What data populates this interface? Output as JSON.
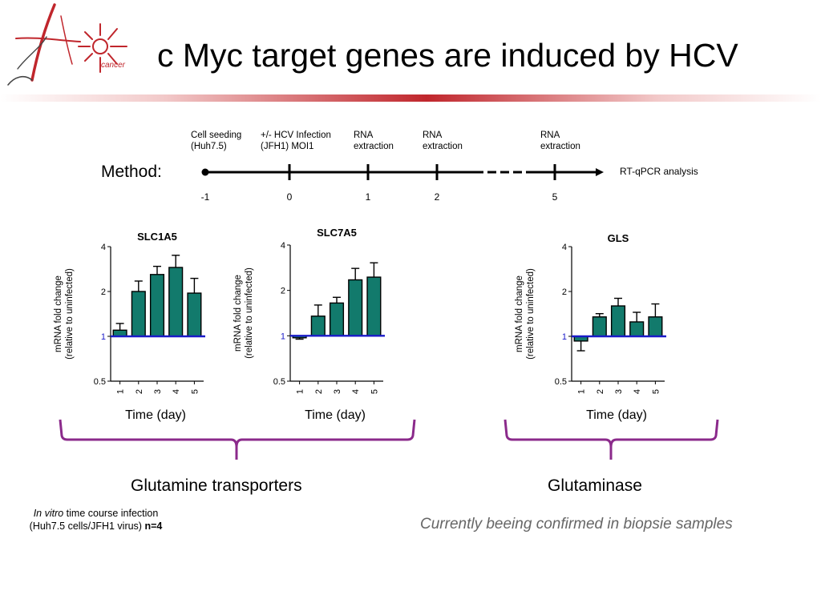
{
  "title": "c Myc target genes are induced by HCV",
  "logo": {
    "text": "cancer",
    "accent": "#c0262c"
  },
  "colors": {
    "bar": "#127a6c",
    "baseline": "#1a1ac8",
    "brace": "#8b2a8b",
    "accent": "#c0262c"
  },
  "method": {
    "label": "Method:",
    "end_label": "RT-qPCR analysis",
    "steps": [
      {
        "tick": "-1",
        "lines": [
          "Cell seeding",
          "(Huh7.5)"
        ]
      },
      {
        "tick": "0",
        "lines": [
          "+/- HCV Infection",
          "(JFH1) MOI1"
        ]
      },
      {
        "tick": "1",
        "lines": [
          "RNA",
          "extraction"
        ]
      },
      {
        "tick": "2",
        "lines": [
          "RNA",
          "extraction"
        ]
      },
      {
        "tick": "5",
        "lines": [
          "RNA",
          "extraction"
        ]
      }
    ]
  },
  "groups": {
    "transporters": "Glutamine transporters",
    "glutaminase": "Glutaminase"
  },
  "footnote": {
    "italic": "In vitro",
    "line1_rest": " time course infection",
    "line2": "(Huh7.5 cells/JFH1 virus) ",
    "n": "n=4"
  },
  "confirm_note": "Currently beeing confirmed in biopsie samples",
  "chart_data": [
    {
      "type": "bar",
      "title": "SLC1A5",
      "xlabel": "Time (day)",
      "ylabel": [
        "mRNA fold change",
        "(relative to uninfected)"
      ],
      "categories": [
        "1",
        "2",
        "3",
        "4",
        "5"
      ],
      "values": [
        1.1,
        2.0,
        2.6,
        2.9,
        1.95
      ],
      "errors": [
        0.12,
        0.35,
        0.35,
        0.6,
        0.5
      ],
      "yscale": "log2",
      "ylim": [
        0.5,
        4
      ],
      "yticks": [
        "4",
        "2",
        "1",
        "0.5"
      ],
      "baseline": 1
    },
    {
      "type": "bar",
      "title": "SLC7A5",
      "xlabel": "Time (day)",
      "ylabel": [
        "mRNA fold change",
        "(relative to uninfected)"
      ],
      "categories": [
        "1",
        "2",
        "3",
        "4",
        "5"
      ],
      "values": [
        0.97,
        1.35,
        1.65,
        2.35,
        2.45
      ],
      "errors": [
        0.02,
        0.25,
        0.15,
        0.45,
        0.6
      ],
      "yscale": "log2",
      "ylim": [
        0.5,
        4
      ],
      "yticks": [
        "4",
        "2",
        "1",
        "0.5"
      ],
      "baseline": 1
    },
    {
      "type": "bar",
      "title": "GLS",
      "xlabel": "Time (day)",
      "ylabel": [
        "mRNA fold change",
        "(relative to uninfected)"
      ],
      "categories": [
        "1",
        "2",
        "3",
        "4",
        "5"
      ],
      "values": [
        0.93,
        1.35,
        1.6,
        1.25,
        1.35
      ],
      "errors": [
        0.13,
        0.07,
        0.2,
        0.2,
        0.3
      ],
      "yscale": "log2",
      "ylim": [
        0.5,
        4
      ],
      "yticks": [
        "4",
        "2",
        "1",
        "0.5"
      ],
      "baseline": 1
    }
  ]
}
